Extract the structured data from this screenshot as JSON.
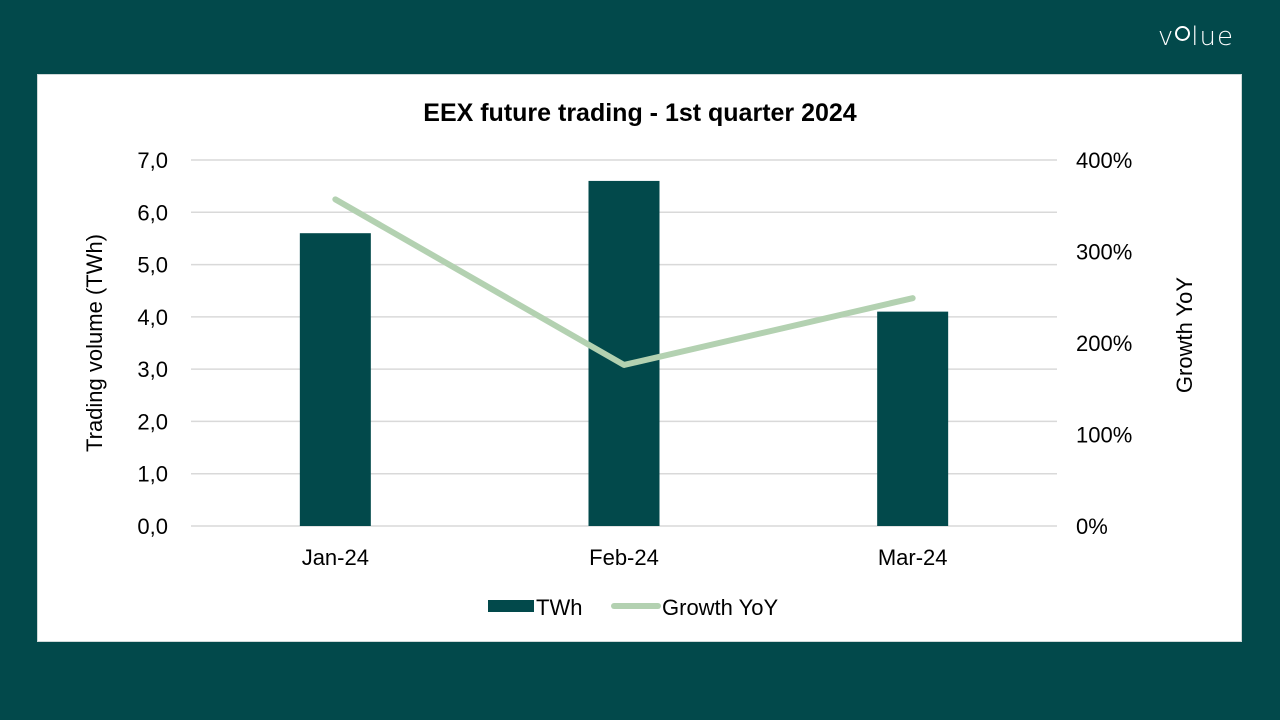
{
  "brand": {
    "logo_text_pre": "v",
    "logo_text_post": "lue",
    "logo_full": "volue"
  },
  "colors": {
    "background": "#02494b",
    "card": "#ffffff",
    "bar": "#02494b",
    "line": "#b3d1b1",
    "grid": "#d9d9d9"
  },
  "chart_data": {
    "type": "bar+line",
    "title": "EEX future trading - 1st quarter 2024",
    "categories": [
      "Jan-24",
      "Feb-24",
      "Mar-24"
    ],
    "series": [
      {
        "name": "TWh",
        "type": "bar",
        "axis": "left",
        "values": [
          5.6,
          6.6,
          4.1
        ]
      },
      {
        "name": "Growth YoY",
        "type": "line",
        "axis": "right",
        "values": [
          357,
          176,
          249
        ],
        "unit": "%"
      }
    ],
    "ylabel": "Trading volume (TWh)",
    "ylabel_right": "Growth YoY",
    "ylim": [
      0,
      7
    ],
    "ylim_right": [
      0,
      400
    ],
    "yticks": [
      "0,0",
      "1,0",
      "2,0",
      "3,0",
      "4,0",
      "5,0",
      "6,0",
      "7,0"
    ],
    "yticks_right": [
      "0%",
      "100%",
      "200%",
      "300%",
      "400%"
    ],
    "grid": true,
    "legend_position": "bottom",
    "legend": [
      "TWh",
      "Growth YoY"
    ]
  }
}
